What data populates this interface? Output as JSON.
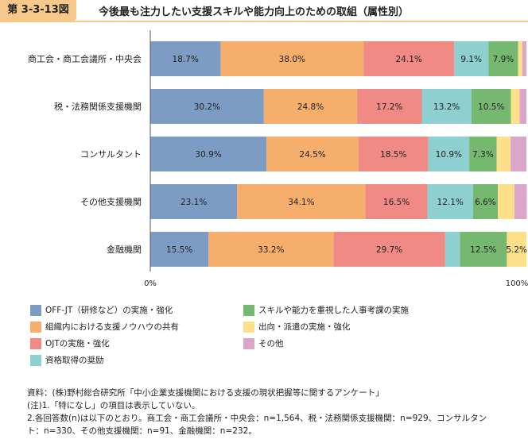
{
  "header": {
    "figure_number": "第 3-3-13図",
    "title": "今後最も注力したい支援スキルや能力向上のための取組（属性別）"
  },
  "chart_data": {
    "type": "bar",
    "orientation": "horizontal",
    "stacked": true,
    "categories": [
      "商工会・商工会議所・中央会",
      "税・法務関係支援機関",
      "コンサルタント",
      "その他支援機関",
      "金融機関"
    ],
    "series": [
      {
        "name": "OFF-JT（研修など）の実施・強化",
        "color": "#7c9cc4",
        "values": [
          18.7,
          30.2,
          30.9,
          23.1,
          15.5
        ]
      },
      {
        "name": "組織内における支援ノウハウの共有",
        "color": "#f5ae6c",
        "values": [
          38.0,
          24.8,
          24.5,
          34.1,
          33.2
        ]
      },
      {
        "name": "OJTの実施・強化",
        "color": "#ef8a85",
        "values": [
          24.1,
          17.2,
          18.5,
          16.5,
          29.7
        ]
      },
      {
        "name": "資格取得の奨励",
        "color": "#8dd0cf",
        "values": [
          9.1,
          13.2,
          10.9,
          12.1,
          3.9
        ]
      },
      {
        "name": "スキルや能力を重視した人事考課の実施",
        "color": "#76b870",
        "values": [
          7.9,
          10.5,
          7.3,
          6.6,
          12.5
        ]
      },
      {
        "name": "出向・派遣の実施・強化",
        "color": "#fde08a",
        "values": [
          1.1,
          2.3,
          3.7,
          4.4,
          5.2
        ]
      },
      {
        "name": "その他",
        "color": "#dba6c9",
        "values": [
          1.1,
          1.8,
          4.2,
          3.3,
          0.0
        ]
      }
    ],
    "segment_labels": [
      [
        "18.7%",
        "38.0%",
        "24.1%",
        "9.1%",
        "7.9%",
        "",
        ""
      ],
      [
        "30.2%",
        "24.8%",
        "17.2%",
        "13.2%",
        "10.5%",
        "",
        ""
      ],
      [
        "30.9%",
        "24.5%",
        "18.5%",
        "10.9%",
        "7.3%",
        "",
        ""
      ],
      [
        "23.1%",
        "34.1%",
        "16.5%",
        "12.1%",
        "6.6%",
        "",
        ""
      ],
      [
        "15.5%",
        "33.2%",
        "29.7%",
        "",
        "12.5%",
        "5.2%",
        ""
      ]
    ],
    "xlim": [
      0,
      100
    ],
    "xticks": [
      "0%",
      "100%"
    ],
    "grid": false,
    "legend_position": "bottom"
  },
  "notes": [
    "資料：(株)野村総合研究所「中小企業支援機関における支援の現状把握等に関するアンケート」",
    "(注)1.「特になし」の項目は表示していない。",
    "2.各回答数(n)は以下のとおり。商工会・商工会議所・中央会：n=1,564、税・法務関係支援機関：n=929、コンサルタン",
    "ト：n=330、その他支援機関：n=91、金融機関：n=232。"
  ]
}
